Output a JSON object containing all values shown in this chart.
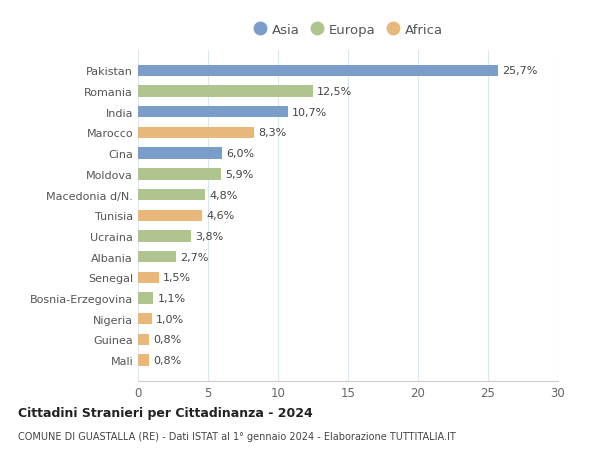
{
  "countries": [
    "Pakistan",
    "Romania",
    "India",
    "Marocco",
    "Cina",
    "Moldova",
    "Macedonia d/N.",
    "Tunisia",
    "Ucraina",
    "Albania",
    "Senegal",
    "Bosnia-Erzegovina",
    "Nigeria",
    "Guinea",
    "Mali"
  ],
  "values": [
    25.7,
    12.5,
    10.7,
    8.3,
    6.0,
    5.9,
    4.8,
    4.6,
    3.8,
    2.7,
    1.5,
    1.1,
    1.0,
    0.8,
    0.8
  ],
  "labels": [
    "25,7%",
    "12,5%",
    "10,7%",
    "8,3%",
    "6,0%",
    "5,9%",
    "4,8%",
    "4,6%",
    "3,8%",
    "2,7%",
    "1,5%",
    "1,1%",
    "1,0%",
    "0,8%",
    "0,8%"
  ],
  "continents": [
    "Asia",
    "Europa",
    "Asia",
    "Africa",
    "Asia",
    "Europa",
    "Europa",
    "Africa",
    "Europa",
    "Europa",
    "Africa",
    "Europa",
    "Africa",
    "Africa",
    "Africa"
  ],
  "colors": {
    "Asia": "#7b9dc9",
    "Europa": "#b0c490",
    "Africa": "#e8b87a"
  },
  "legend_order": [
    "Asia",
    "Europa",
    "Africa"
  ],
  "xlim": [
    0,
    30
  ],
  "xticks": [
    0,
    5,
    10,
    15,
    20,
    25,
    30
  ],
  "title1": "Cittadini Stranieri per Cittadinanza - 2024",
  "title2": "COMUNE DI GUASTALLA (RE) - Dati ISTAT al 1° gennaio 2024 - Elaborazione TUTTITALIA.IT",
  "bg_color": "#ffffff",
  "grid_color": "#dde8ee",
  "bar_height": 0.55,
  "label_fontsize": 8.0,
  "ytick_fontsize": 8.0,
  "xtick_fontsize": 8.5
}
